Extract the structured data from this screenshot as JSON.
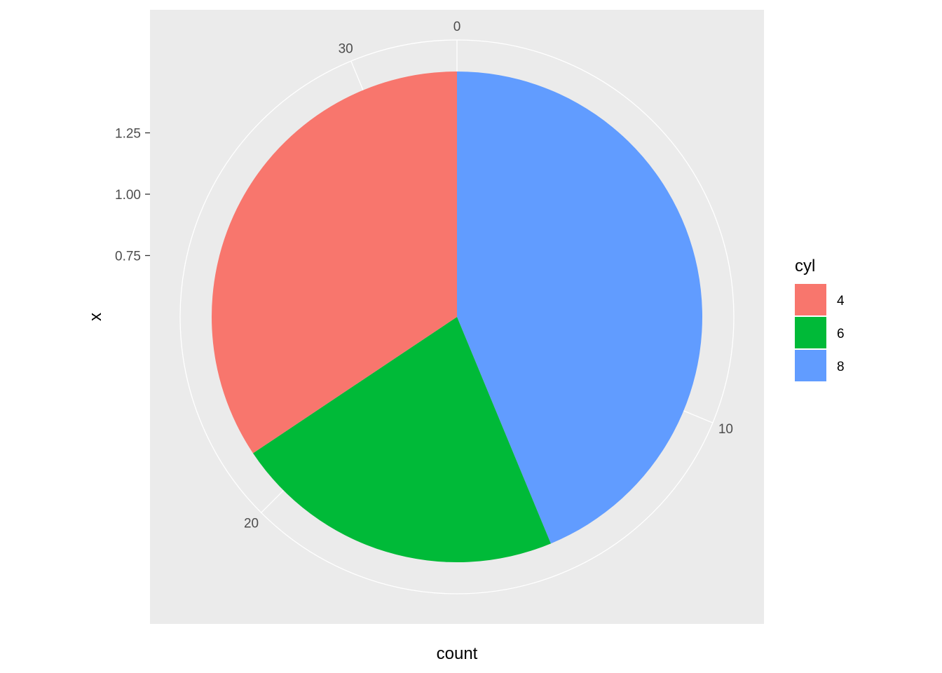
{
  "chart_data": {
    "type": "pie",
    "xlabel": "count",
    "ylabel": "x",
    "theta_range": [
      0,
      32
    ],
    "theta_ticks": [
      "0",
      "10",
      "20",
      "30"
    ],
    "theta_tick_values": [
      0,
      10,
      20,
      30
    ],
    "r_ticks": [
      "0.75",
      "1.00",
      "1.25"
    ],
    "r_tick_values": [
      0.75,
      1.0,
      1.25
    ],
    "r_range": [
      0.5,
      1.5
    ],
    "grid": true,
    "legend": {
      "title": "cyl",
      "position": "right",
      "entries": [
        "4",
        "6",
        "8"
      ]
    },
    "categories": [
      "8",
      "6",
      "4"
    ],
    "values": [
      14,
      7,
      11
    ],
    "colors": {
      "4": "#F8766D",
      "6": "#00BA38",
      "8": "#619CFF"
    },
    "panel_background": "#EBEBEB",
    "grid_color": "#FFFFFF"
  }
}
